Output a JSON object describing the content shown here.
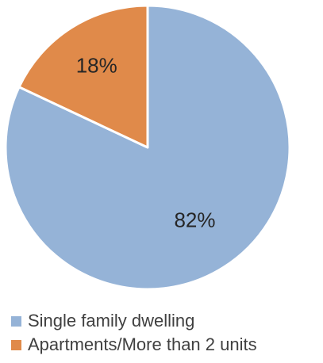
{
  "chart_data": {
    "type": "pie",
    "categories": [
      "Single family dwelling",
      "Apartments/More than 2 units"
    ],
    "values": [
      82,
      18
    ],
    "data_labels": [
      "82%",
      "18%"
    ],
    "colors": [
      "#95b3d7",
      "#e08a4a"
    ],
    "start_angle": "12 o'clock, clockwise",
    "legend_position": "bottom-left"
  }
}
